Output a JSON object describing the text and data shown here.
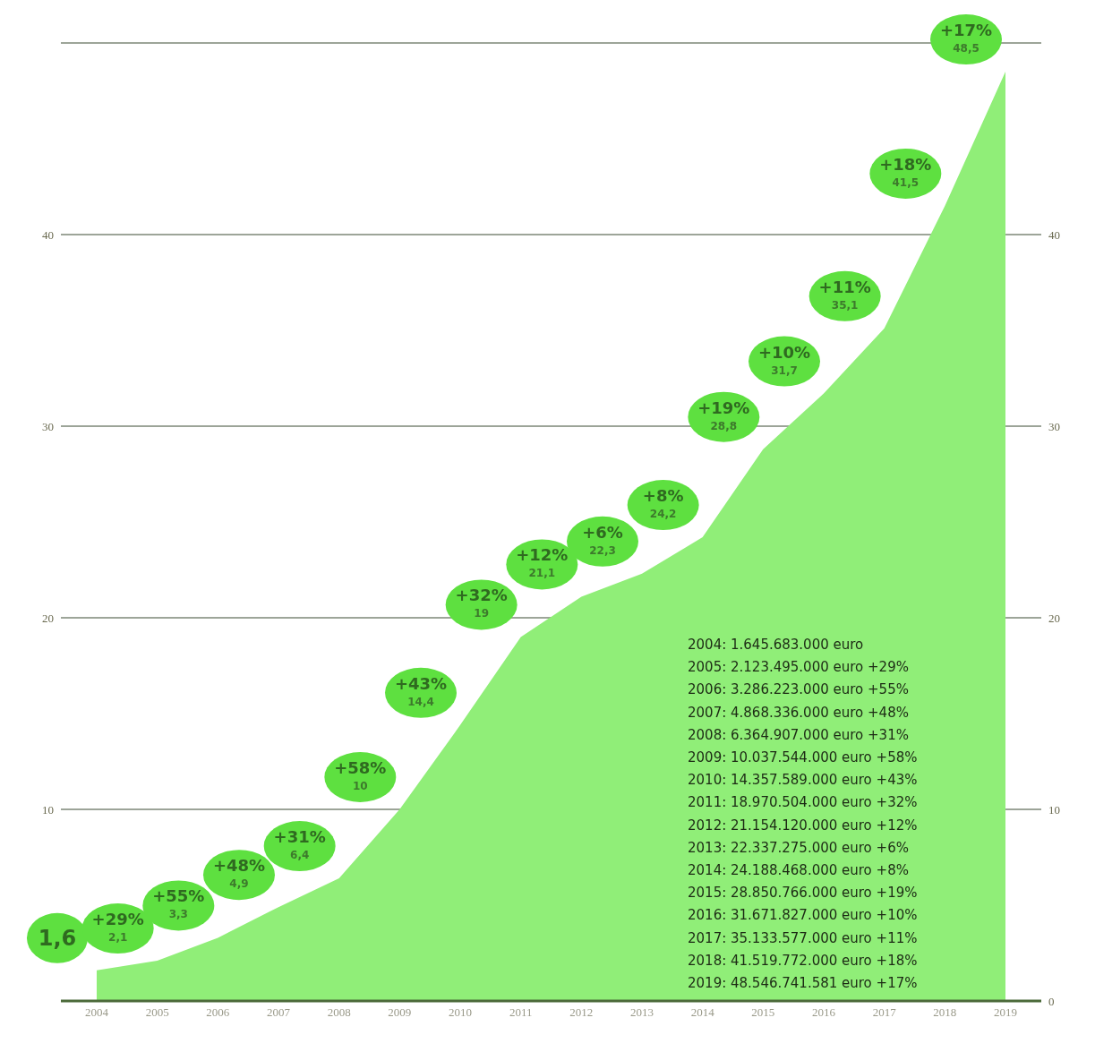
{
  "chart_data": {
    "type": "area",
    "categories": [
      "2004",
      "2005",
      "2006",
      "2007",
      "2008",
      "2009",
      "2010",
      "2011",
      "2012",
      "2013",
      "2014",
      "2015",
      "2016",
      "2017",
      "2018",
      "2019"
    ],
    "series": [
      {
        "color": "#90ee78",
        "values": [
          1.6,
          2.1,
          3.3,
          4.9,
          6.4,
          10,
          14.4,
          19,
          21.1,
          22.3,
          24.2,
          28.8,
          31.7,
          35.1,
          41.5,
          48.5
        ],
        "value_labels": [
          "1,6",
          "+29%\n2,1",
          "+55%\n3,3",
          "+48%\n4,9",
          "+31%\n6,4",
          "+58%\n10",
          "+43%\n14,4",
          "+32%\n19",
          "+12%\n21,1",
          "+6%\n22,3",
          "+8%\n24,2",
          "+19%\n28,8",
          "+10%\n31,7",
          "+11%\n35,1",
          "+18%\n41,5",
          "+17%\n48,5"
        ]
      }
    ],
    "ylim": [
      0,
      50
    ],
    "yticks": [
      {
        "value": 0,
        "label": null
      },
      10,
      20,
      30,
      40
    ],
    "y2lim": [
      0,
      50
    ],
    "y2ticks": [
      0,
      10,
      20,
      30,
      40
    ],
    "grid": "y",
    "legend": false,
    "annotations": [
      "2004: 1.645.683.000 euro",
      "2005: 2.123.495.000 euro +29%",
      "2006: 3.286.223.000 euro +55%",
      "2007: 4.868.336.000 euro +48%",
      "2008: 6.364.907.000 euro +31%",
      "2009: 10.037.544.000 euro +58%",
      "2010: 14.357.589.000 euro +43%",
      "2011: 18.970.504.000 euro +32%",
      "2012: 21.154.120.000 euro +12%",
      "2013: 22.337.275.000 euro +6%",
      "2014: 24.188.468.000 euro +8%",
      "2015: 28.850.766.000 euro +19%",
      "2016: 31.671.827.000 euro +10%",
      "2017: 35.133.577.000 euro +11%",
      "2018: 41.519.772.000 euro +18%",
      "2019: 48.546.741.581 euro +17%"
    ]
  }
}
